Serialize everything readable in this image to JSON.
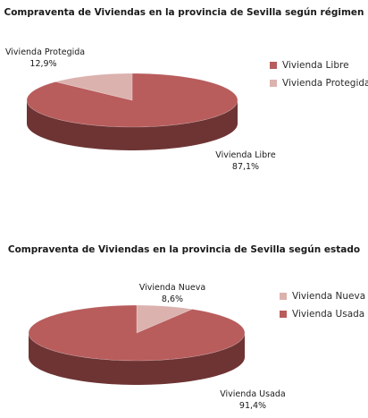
{
  "chart_data": [
    {
      "type": "pie",
      "title": "Compraventa de Viviendas en la provincia de Sevilla según régimen",
      "categories": [
        "Vivienda Libre",
        "Vivienda Protegida"
      ],
      "values": [
        87.1,
        12.9
      ],
      "value_labels": [
        "87,1%",
        "12,9%"
      ],
      "colors": [
        "#b85c5c",
        "#dbb2ae"
      ],
      "side_colors": [
        "#6e3434",
        "#8a6a66"
      ],
      "legend": {
        "position": "right",
        "entries": [
          "Vivienda Libre",
          "Vivienda Protegida"
        ]
      },
      "style": "3d"
    },
    {
      "type": "pie",
      "title": "Compraventa de Viviendas en la provincia de Sevilla según estado",
      "categories": [
        "Vivienda Nueva",
        "Vivienda Usada"
      ],
      "values": [
        8.6,
        91.4
      ],
      "value_labels": [
        "8,6%",
        "91,4%"
      ],
      "colors": [
        "#dbb2ae",
        "#b85c5c"
      ],
      "side_colors": [
        "#8a6a66",
        "#6e3434"
      ],
      "legend": {
        "position": "right",
        "entries": [
          "Vivienda Nueva",
          "Vivienda Usada"
        ]
      },
      "style": "3d"
    }
  ]
}
